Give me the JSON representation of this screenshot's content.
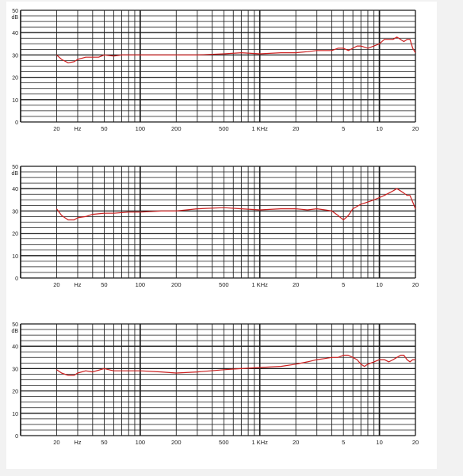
{
  "colors": {
    "background": "#f2f2f2",
    "paper": "#ffffff",
    "grid": "#1a1a1a",
    "trace": "#cc1f1f"
  },
  "chart_data": [
    {
      "type": "line",
      "xscale": "log",
      "xlim": [
        10,
        20000
      ],
      "ylim": [
        0,
        50
      ],
      "grid": true,
      "y_unit": "dB",
      "y_tick_labels": [
        "50",
        "40",
        "30",
        "20",
        "10",
        "0"
      ],
      "x_tick_labels": [
        "20",
        "Hz",
        "50",
        "100",
        "200",
        "500",
        "1 KHz",
        "20",
        "5",
        "10",
        "20"
      ],
      "series": [
        {
          "x": [
            20,
            22,
            25,
            28,
            30,
            35,
            40,
            45,
            50,
            60,
            70,
            80,
            100,
            150,
            200,
            300,
            500,
            700,
            1000,
            1500,
            2000,
            2500,
            3000,
            3500,
            4000,
            4500,
            5000,
            5500,
            6000,
            6500,
            7000,
            8000,
            9000,
            10000,
            11000,
            12000,
            13000,
            14000,
            15000,
            16000,
            17000,
            18000,
            19000,
            20000
          ],
          "y": [
            30,
            28,
            26.5,
            27,
            28,
            29,
            29,
            29,
            30,
            29.5,
            30,
            30,
            30,
            30,
            30,
            30,
            30.5,
            31,
            30.5,
            31,
            31,
            31.5,
            32,
            32,
            32,
            33,
            33,
            32,
            33,
            34,
            34,
            33,
            34,
            35,
            37,
            37,
            37,
            38,
            37,
            36,
            37,
            37,
            33,
            31
          ]
        }
      ]
    },
    {
      "type": "line",
      "xscale": "log",
      "xlim": [
        10,
        20000
      ],
      "ylim": [
        0,
        50
      ],
      "grid": true,
      "y_unit": "dB",
      "y_tick_labels": [
        "50",
        "40",
        "30",
        "20",
        "10",
        "0"
      ],
      "x_tick_labels": [
        "20",
        "Hz",
        "50",
        "100",
        "200",
        "500",
        "1 KHz",
        "20",
        "5",
        "10",
        "20"
      ],
      "series": [
        {
          "x": [
            20,
            22,
            25,
            28,
            30,
            35,
            40,
            50,
            60,
            80,
            100,
            150,
            200,
            300,
            500,
            700,
            1000,
            1500,
            2000,
            2500,
            3000,
            3500,
            4000,
            4500,
            5000,
            5500,
            6000,
            7000,
            8000,
            9000,
            10000,
            11000,
            12000,
            13000,
            14000,
            15000,
            16000,
            17000,
            18000,
            19000,
            20000
          ],
          "y": [
            31,
            28,
            26,
            26,
            27,
            27.5,
            28.5,
            29,
            29,
            29.5,
            29.5,
            30,
            30,
            31,
            31.5,
            31,
            30.5,
            31,
            31,
            30.5,
            31,
            30.5,
            30,
            28,
            26,
            28,
            31,
            33,
            34,
            35,
            36,
            37,
            38,
            39,
            40,
            39,
            38,
            37,
            37,
            34,
            31
          ]
        }
      ]
    },
    {
      "type": "line",
      "xscale": "log",
      "xlim": [
        10,
        20000
      ],
      "ylim": [
        0,
        50
      ],
      "grid": true,
      "y_unit": "dB",
      "y_tick_labels": [
        "50",
        "40",
        "30",
        "20",
        "10",
        "0"
      ],
      "x_tick_labels": [
        "20",
        "Hz",
        "50",
        "100",
        "200",
        "500",
        "1 KHz",
        "20",
        "5",
        "10",
        "20"
      ],
      "series": [
        {
          "x": [
            20,
            22,
            25,
            28,
            30,
            35,
            40,
            50,
            60,
            80,
            100,
            150,
            200,
            300,
            500,
            700,
            1000,
            1500,
            2000,
            2500,
            3000,
            3500,
            4000,
            4500,
            5000,
            5500,
            6000,
            6500,
            7000,
            7500,
            8000,
            9000,
            10000,
            11000,
            12000,
            13000,
            14000,
            15000,
            16000,
            17000,
            18000,
            19000,
            20000
          ],
          "y": [
            29.5,
            28,
            27,
            27,
            28,
            29,
            28.5,
            30,
            29,
            29,
            29,
            28.5,
            28,
            28.5,
            29.5,
            30,
            30.5,
            31,
            32,
            33,
            34,
            34.5,
            35,
            35,
            36,
            36,
            35,
            34,
            32,
            31,
            32,
            33,
            34,
            34,
            33,
            34,
            35,
            36,
            36,
            34,
            33,
            34,
            34
          ]
        }
      ]
    }
  ]
}
